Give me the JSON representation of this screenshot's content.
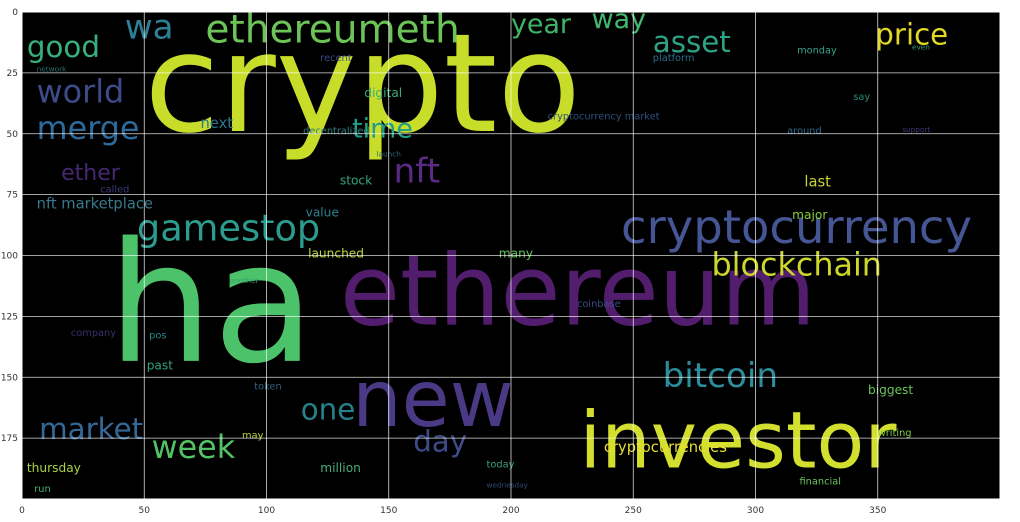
{
  "chart_data": {
    "type": "wordcloud",
    "title": "",
    "xlabel": "",
    "ylabel": "",
    "xlim": [
      0,
      400
    ],
    "ylim": [
      200,
      0
    ],
    "xticks": [
      0,
      50,
      100,
      150,
      200,
      250,
      300,
      350
    ],
    "yticks": [
      0,
      25,
      50,
      75,
      100,
      125,
      150,
      175
    ],
    "grid": true,
    "background": "#000000",
    "words": [
      {
        "text": "crypto",
        "x": 50,
        "y": 5,
        "size": 56,
        "color": "#c8dc2a"
      },
      {
        "text": "ha",
        "x": 35,
        "y": 90,
        "size": 68,
        "color": "#4cc26a"
      },
      {
        "text": "ethereum",
        "x": 130,
        "y": 97,
        "size": 40,
        "color": "#531d6e"
      },
      {
        "text": "new",
        "x": 135,
        "y": 145,
        "size": 32,
        "color": "#4a3a86"
      },
      {
        "text": "investor",
        "x": 228,
        "y": 162,
        "size": 32,
        "color": "#d2df2e"
      },
      {
        "text": "cryptocurrency",
        "x": 245,
        "y": 80,
        "size": 19,
        "color": "#465594"
      },
      {
        "text": "ethereumeth",
        "x": 75,
        "y": 0,
        "size": 16,
        "color": "#6cc458"
      },
      {
        "text": "gamestop",
        "x": 47,
        "y": 82,
        "size": 15,
        "color": "#2c9c8e"
      },
      {
        "text": "blockchain",
        "x": 282,
        "y": 98,
        "size": 13,
        "color": "#ccd62c"
      },
      {
        "text": "bitcoin",
        "x": 262,
        "y": 143,
        "size": 14,
        "color": "#2c8d9c"
      },
      {
        "text": "price",
        "x": 349,
        "y": 4,
        "size": 12,
        "color": "#e0d823"
      },
      {
        "text": "asset",
        "x": 258,
        "y": 7,
        "size": 12,
        "color": "#2ea282"
      },
      {
        "text": "good",
        "x": 2,
        "y": 9,
        "size": 12,
        "color": "#36b17c"
      },
      {
        "text": "wa",
        "x": 42,
        "y": 0,
        "size": 14,
        "color": "#2c8096"
      },
      {
        "text": "world",
        "x": 6,
        "y": 27,
        "size": 13,
        "color": "#3e4b8a"
      },
      {
        "text": "merge",
        "x": 6,
        "y": 42,
        "size": 13,
        "color": "#2d6a9c"
      },
      {
        "text": "time",
        "x": 135,
        "y": 43,
        "size": 11,
        "color": "#1f9f8a"
      },
      {
        "text": "nft",
        "x": 152,
        "y": 59,
        "size": 14,
        "color": "#5a2a84"
      },
      {
        "text": "year",
        "x": 200,
        "y": 0,
        "size": 11,
        "color": "#3fb466"
      },
      {
        "text": "way",
        "x": 233,
        "y": -2,
        "size": 11,
        "color": "#41b870"
      },
      {
        "text": "market",
        "x": 7,
        "y": 166,
        "size": 12,
        "color": "#336996"
      },
      {
        "text": "week",
        "x": 53,
        "y": 173,
        "size": 13,
        "color": "#52c265"
      },
      {
        "text": "one",
        "x": 114,
        "y": 158,
        "size": 12,
        "color": "#26818c"
      },
      {
        "text": "day",
        "x": 160,
        "y": 171,
        "size": 12,
        "color": "#3e4b8a"
      },
      {
        "text": "cryptocurrencies",
        "x": 238,
        "y": 176,
        "size": 6,
        "color": "#e8df30"
      },
      {
        "text": "ether",
        "x": 16,
        "y": 62,
        "size": 9,
        "color": "#462870"
      },
      {
        "text": "next",
        "x": 73,
        "y": 43,
        "size": 6,
        "color": "#2a788e"
      },
      {
        "text": "stock",
        "x": 130,
        "y": 67,
        "size": 5,
        "color": "#36a27a"
      },
      {
        "text": "value",
        "x": 116,
        "y": 80,
        "size": 5,
        "color": "#2c7f8e"
      },
      {
        "text": "launched",
        "x": 117,
        "y": 97,
        "size": 5,
        "color": "#c1d539"
      },
      {
        "text": "many",
        "x": 195,
        "y": 97,
        "size": 5,
        "color": "#5ec25c"
      },
      {
        "text": "digital",
        "x": 140,
        "y": 31,
        "size": 5,
        "color": "#3aac76"
      },
      {
        "text": "last",
        "x": 320,
        "y": 67,
        "size": 6,
        "color": "#c9d62b"
      },
      {
        "text": "major",
        "x": 315,
        "y": 81,
        "size": 5,
        "color": "#87ce38"
      },
      {
        "text": "biggest",
        "x": 346,
        "y": 153,
        "size": 5,
        "color": "#6bc45c"
      },
      {
        "text": "monday",
        "x": 317,
        "y": 14,
        "size": 4,
        "color": "#38a28a"
      },
      {
        "text": "thursday",
        "x": 2,
        "y": 185,
        "size": 5,
        "color": "#a6d440"
      },
      {
        "text": "run",
        "x": 5,
        "y": 194,
        "size": 4,
        "color": "#43b474"
      },
      {
        "text": "million",
        "x": 122,
        "y": 185,
        "size": 5,
        "color": "#4aab7a"
      },
      {
        "text": "today",
        "x": 190,
        "y": 184,
        "size": 4,
        "color": "#3aa376"
      },
      {
        "text": "financial",
        "x": 318,
        "y": 191,
        "size": 4,
        "color": "#6bc35c"
      },
      {
        "text": "writing",
        "x": 350,
        "y": 171,
        "size": 4,
        "color": "#7fcc40"
      },
      {
        "text": "past",
        "x": 51,
        "y": 143,
        "size": 5,
        "color": "#36a07a"
      },
      {
        "text": "pos",
        "x": 52,
        "y": 131,
        "size": 4,
        "color": "#2a8a8a"
      },
      {
        "text": "platform",
        "x": 258,
        "y": 17,
        "size": 4,
        "color": "#2d6e8e"
      },
      {
        "text": "recent",
        "x": 122,
        "y": 17,
        "size": 4,
        "color": "#3a4a84"
      },
      {
        "text": "say",
        "x": 340,
        "y": 33,
        "size": 4,
        "color": "#2a8a78"
      },
      {
        "text": "around",
        "x": 313,
        "y": 47,
        "size": 4,
        "color": "#30678c"
      },
      {
        "text": "support",
        "x": 360,
        "y": 47,
        "size": 3,
        "color": "#3e3a78"
      },
      {
        "text": "coinbase",
        "x": 227,
        "y": 118,
        "size": 4,
        "color": "#3a4a84"
      },
      {
        "text": "another",
        "x": 85,
        "y": 109,
        "size": 3,
        "color": "#3aa06c"
      },
      {
        "text": "token",
        "x": 95,
        "y": 152,
        "size": 4,
        "color": "#36607e"
      },
      {
        "text": "may",
        "x": 90,
        "y": 172,
        "size": 4,
        "color": "#c0d23a"
      },
      {
        "text": "even",
        "x": 364,
        "y": 13,
        "size": 3,
        "color": "#3b9f72"
      },
      {
        "text": "called",
        "x": 32,
        "y": 71,
        "size": 4,
        "color": "#3a3a7a"
      },
      {
        "text": "nft marketplace",
        "x": 6,
        "y": 76,
        "size": 6,
        "color": "#3a7a8c"
      },
      {
        "text": "company",
        "x": 20,
        "y": 130,
        "size": 4,
        "color": "#3b2f6e"
      },
      {
        "text": "decentralized",
        "x": 115,
        "y": 47,
        "size": 4,
        "color": "#32807c"
      },
      {
        "text": "cryptocurrency market",
        "x": 215,
        "y": 41,
        "size": 4,
        "color": "#2e4f7e"
      },
      {
        "text": "wednesday",
        "x": 190,
        "y": 193,
        "size": 3,
        "color": "#2e4a78"
      },
      {
        "text": "network",
        "x": 6,
        "y": 22,
        "size": 3,
        "color": "#28706e"
      },
      {
        "text": "launch",
        "x": 145,
        "y": 57,
        "size": 3,
        "color": "#2a6a7a"
      }
    ]
  }
}
